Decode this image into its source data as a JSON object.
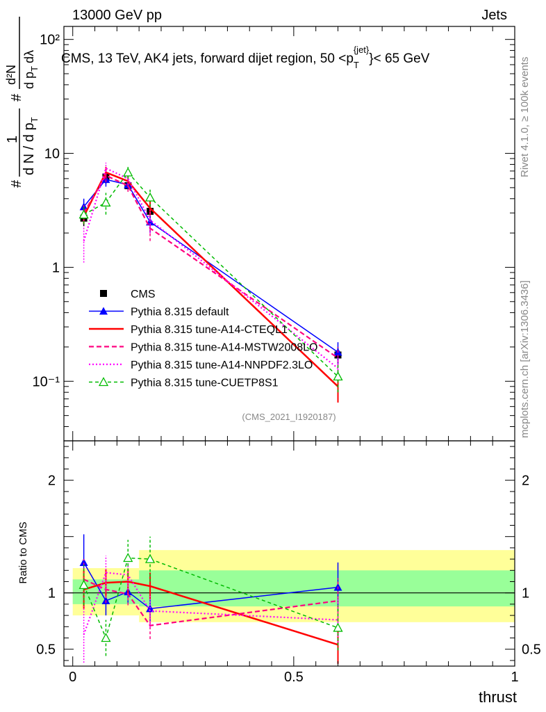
{
  "header": {
    "left": "13000 GeV pp",
    "right": "Jets"
  },
  "side_labels": {
    "rivet": "Rivet 4.1.0, ≥ 100k events",
    "mcplots": "mcplots.cern.ch [arXiv:1306.3436]"
  },
  "chart_data": [
    {
      "panel": "main",
      "type": "line",
      "title": "CMS, 13 TeV, AK4 jets, forward dijet region, 50 <p_T^{jet}> < 65 GeV",
      "title_parts": {
        "pre": "CMS, 13 TeV, AK4 jets, forward dijet region, 50 <p",
        "sub": "T",
        "sup": "{jet}",
        "post": "}< 65 GeV"
      },
      "ylabel_parts": {
        "numerator_top": "1",
        "denominator": "d N / d p",
        "sub": "T",
        "hash": "#",
        "rhs_numerator": "d²N",
        "rhs_denominator": "d p",
        "rhs_denominator2": "dλ"
      },
      "yscale": "log",
      "ylim": [
        0.03,
        130
      ],
      "xlim": [
        -0.02,
        1.0
      ],
      "y_ticks": [
        {
          "value": 0.1,
          "label": "10⁻¹"
        },
        {
          "value": 1,
          "label": "1"
        },
        {
          "value": 10,
          "label": "10"
        },
        {
          "value": 100,
          "label": "10²"
        }
      ],
      "watermark": "(CMS_2021_I1920187)",
      "legend_position": "lower-left",
      "series": [
        {
          "name": "CMS",
          "style": "data",
          "color": "#000000",
          "x": [
            0.025,
            0.075,
            0.125,
            0.175,
            0.6
          ],
          "y": [
            2.7,
            6.2,
            5.2,
            3.1,
            0.17
          ],
          "yerr": [
            0.4,
            0.8,
            0.5,
            0.5,
            0.03
          ]
        },
        {
          "name": "Pythia 8.315 default",
          "style": "solid-triangle",
          "color": "#0000ff",
          "x": [
            0.025,
            0.075,
            0.125,
            0.175,
            0.6
          ],
          "y": [
            3.4,
            5.9,
            5.3,
            2.5,
            0.18
          ],
          "yerr": [
            0.6,
            0.8,
            0.6,
            0.5,
            0.04
          ]
        },
        {
          "name": "Pythia 8.315 tune-A14-CTEQL1",
          "style": "thick-solid",
          "color": "#ff0000",
          "x": [
            0.025,
            0.075,
            0.125,
            0.175,
            0.6
          ],
          "y": [
            2.8,
            6.8,
            5.7,
            3.3,
            0.09
          ],
          "yerr": [
            0.4,
            0.8,
            0.6,
            0.5,
            0.025
          ]
        },
        {
          "name": "Pythia 8.315 tune-A14-MSTW2008LO",
          "style": "dashed",
          "color": "#ff007f",
          "x": [
            0.025,
            0.075,
            0.125,
            0.175,
            0.6
          ],
          "y": [
            3.0,
            6.4,
            5.2,
            2.2,
            0.16
          ],
          "yerr": [
            0.5,
            0.8,
            0.6,
            0.5,
            0.04
          ]
        },
        {
          "name": "Pythia 8.315 tune-A14-NNPDF2.3LO",
          "style": "dotted",
          "color": "#ff00ff",
          "x": [
            0.025,
            0.075,
            0.125,
            0.175,
            0.6
          ],
          "y": [
            1.7,
            7.4,
            6.0,
            2.6,
            0.13
          ],
          "yerr": [
            0.6,
            0.9,
            0.7,
            0.6,
            0.03
          ]
        },
        {
          "name": "Pythia 8.315 tune-CUETP8S1",
          "style": "dashed-open-triangle",
          "color": "#00bb00",
          "x": [
            0.025,
            0.075,
            0.125,
            0.175,
            0.6
          ],
          "y": [
            2.9,
            3.7,
            6.8,
            4.1,
            0.11
          ],
          "yerr": [
            0.5,
            0.8,
            0.8,
            0.7,
            0.03
          ]
        }
      ]
    },
    {
      "panel": "ratio",
      "type": "line",
      "ylabel": "Ratio to CMS",
      "xlabel": "thrust",
      "ylim": [
        0.35,
        2.35
      ],
      "xlim": [
        -0.02,
        1.0
      ],
      "x_ticks": [
        {
          "value": 0,
          "label": "0"
        },
        {
          "value": 0.5,
          "label": "0.5"
        },
        {
          "value": 1,
          "label": "1"
        }
      ],
      "y_ticks": [
        {
          "value": 0.5,
          "label": "0.5"
        },
        {
          "value": 1,
          "label": "1"
        },
        {
          "value": 2,
          "label": "2"
        }
      ],
      "bands": [
        {
          "name": "stat+syst",
          "color": "#ffff99",
          "bins": [
            [
              0.0,
              0.15,
              0.8,
              1.22
            ],
            [
              0.15,
              1.0,
              0.74,
              1.38
            ]
          ]
        },
        {
          "name": "stat",
          "color": "#99ff99",
          "bins": [
            [
              0.0,
              0.15,
              0.9,
              1.12
            ],
            [
              0.15,
              1.0,
              0.88,
              1.2
            ]
          ]
        }
      ],
      "series": [
        {
          "name": "Pythia 8.315 default",
          "color": "#0000ff",
          "style": "solid-triangle",
          "x": [
            0.025,
            0.075,
            0.125,
            0.175,
            0.6
          ],
          "y": [
            1.27,
            0.93,
            1.01,
            0.86,
            1.05
          ],
          "yerr": [
            0.25,
            0.13,
            0.1,
            0.12,
            0.22
          ]
        },
        {
          "name": "Pythia 8.315 tune-A14-CTEQL1",
          "color": "#ff0000",
          "style": "thick-solid",
          "x": [
            0.025,
            0.075,
            0.125,
            0.175,
            0.6
          ],
          "y": [
            1.03,
            1.09,
            1.1,
            1.06,
            0.54
          ],
          "yerr": [
            0.17,
            0.12,
            0.11,
            0.12,
            0.17
          ]
        },
        {
          "name": "Pythia 8.315 tune-A14-MSTW2008LO",
          "color": "#ff007f",
          "style": "dashed",
          "x": [
            0.025,
            0.075,
            0.125,
            0.175,
            0.6
          ],
          "y": [
            1.12,
            1.03,
            0.99,
            0.71,
            0.93
          ],
          "yerr": [
            0.18,
            0.12,
            0.1,
            0.12,
            0.2
          ]
        },
        {
          "name": "Pythia 8.315 tune-A14-NNPDF2.3LO",
          "color": "#ff00ff",
          "style": "dotted",
          "x": [
            0.025,
            0.075,
            0.125,
            0.175,
            0.6
          ],
          "y": [
            0.63,
            1.18,
            1.16,
            0.84,
            0.76
          ],
          "yerr": [
            0.25,
            0.15,
            0.13,
            0.15,
            0.2
          ]
        },
        {
          "name": "Pythia 8.315 tune-CUETP8S1",
          "color": "#00bb00",
          "style": "dashed-open-triangle",
          "x": [
            0.025,
            0.075,
            0.125,
            0.175,
            0.6
          ],
          "y": [
            1.07,
            0.6,
            1.31,
            1.3,
            0.69
          ],
          "yerr": [
            0.18,
            0.16,
            0.16,
            0.2,
            0.2
          ]
        }
      ]
    }
  ]
}
